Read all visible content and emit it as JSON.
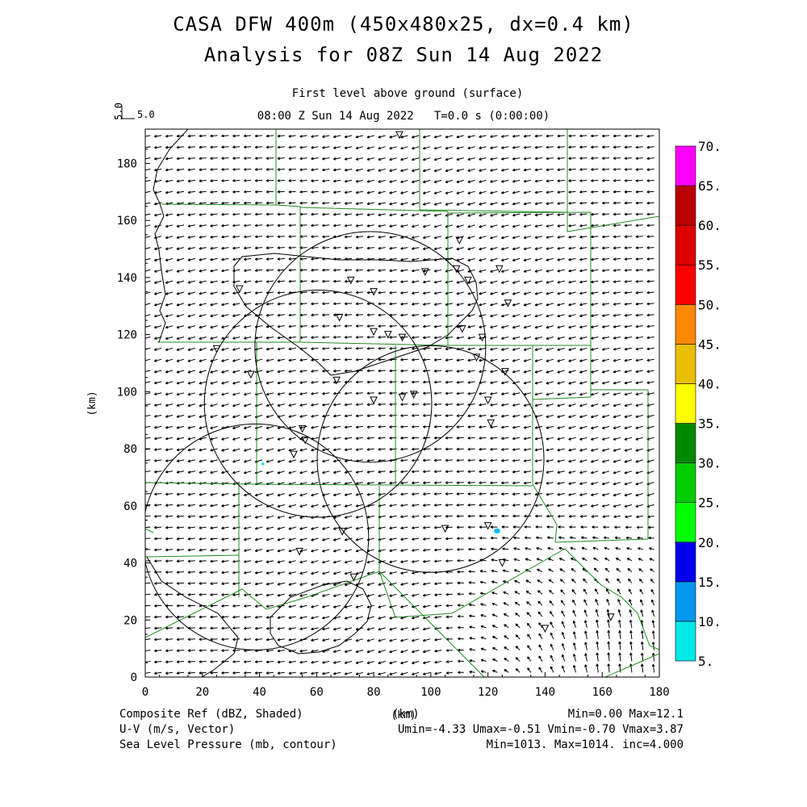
{
  "header": {
    "title_line1": "CASA DFW 400m (450x480x25, dx=0.4 km)",
    "title_line2": "Analysis for 08Z Sun 14 Aug 2022",
    "level": "First level above ground (surface)",
    "time": "08:00 Z Sun 14 Aug 2022   T=0.0 s (0:00:00)",
    "vector_scale_left": "5.0",
    "vector_scale_right": "5.0"
  },
  "axes": {
    "x_label": "(km)",
    "y_label": "(km)",
    "x_ticks": [
      "0",
      "20",
      "40",
      "60",
      "80",
      "100",
      "120",
      "140",
      "160",
      "180"
    ],
    "y_ticks": [
      "0",
      "20",
      "40",
      "60",
      "80",
      "100",
      "120",
      "140",
      "160",
      "180"
    ]
  },
  "colorbar": {
    "labels": [
      "5.",
      "10.",
      "15.",
      "20.",
      "25.",
      "30.",
      "35.",
      "40.",
      "45.",
      "50.",
      "55.",
      "60.",
      "65.",
      "70."
    ],
    "colors": [
      "#00e8e8",
      "#0099ee",
      "#0000ee",
      "#00ff00",
      "#00cc00",
      "#008800",
      "#ffff00",
      "#e8c000",
      "#ff8800",
      "#ff0000",
      "#dd0000",
      "#bb0000",
      "#ff00ff"
    ]
  },
  "footer": {
    "left1": "Composite Ref (dBZ, Shaded)",
    "left2": "U-V (m/s, Vector)",
    "left3": "Sea Level Pressure (mb, contour)",
    "center1": "(km)",
    "right1": "Min=0.00 Max=12.1",
    "right2": "Umin=-4.33 Umax=-0.51 Vmin=-0.70 Vmax=3.87",
    "right3": "Min=1013. Max=1014. inc=4.000"
  },
  "map_data": {
    "x_range_km": [
      0,
      180
    ],
    "y_range_km": [
      0,
      192
    ],
    "radar_rings": [
      {
        "cx": 78.8,
        "cy": 115.7,
        "r": 40.4
      },
      {
        "cx": 60.5,
        "cy": 95.8,
        "r": 39.8
      },
      {
        "cx": 99.9,
        "cy": 76.4,
        "r": 39.7
      },
      {
        "cx": 38.6,
        "cy": 49.1,
        "r": 39.6
      }
    ],
    "stations": [
      [
        89,
        190
      ],
      [
        110,
        153
      ],
      [
        109,
        143
      ],
      [
        113,
        139
      ],
      [
        124,
        143
      ],
      [
        127,
        131
      ],
      [
        33,
        136
      ],
      [
        72,
        139
      ],
      [
        80,
        135
      ],
      [
        98,
        142
      ],
      [
        68,
        126
      ],
      [
        80,
        121
      ],
      [
        85,
        120
      ],
      [
        90,
        119
      ],
      [
        111,
        122
      ],
      [
        118,
        119
      ],
      [
        116,
        112
      ],
      [
        25,
        115
      ],
      [
        37,
        106
      ],
      [
        67,
        104
      ],
      [
        126,
        107
      ],
      [
        80,
        97
      ],
      [
        90,
        98
      ],
      [
        94,
        99
      ],
      [
        120,
        97
      ],
      [
        121,
        89
      ],
      [
        55,
        87
      ],
      [
        56,
        83
      ],
      [
        52,
        78
      ],
      [
        69,
        51
      ],
      [
        105,
        52
      ],
      [
        120,
        53
      ],
      [
        54,
        44
      ],
      [
        73,
        35
      ],
      [
        125,
        40
      ],
      [
        140,
        17
      ],
      [
        163,
        21
      ]
    ],
    "echoes": [
      {
        "x": 123.2,
        "y": 51.2,
        "rx": 1.1,
        "ry": 0.9,
        "dbz_color": "#00bfff"
      },
      {
        "x": 41.2,
        "y": 74.7,
        "rx": 0.5,
        "ry": 0.5,
        "dbz_color": "#00e8e8"
      }
    ],
    "wind_field": {
      "u_min": -4.33,
      "u_max": -0.51,
      "v_min": -0.7,
      "v_max": 3.87
    }
  }
}
